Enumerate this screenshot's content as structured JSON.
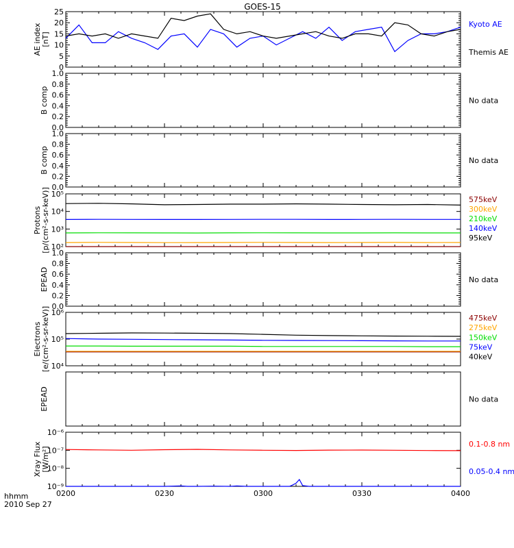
{
  "title": "GOES-15",
  "x_axis": {
    "ticks": [
      "0200",
      "0230",
      "0300",
      "0330",
      "0400"
    ],
    "range_minutes": [
      0,
      120
    ],
    "label_line1": "hhmm",
    "label_line2": "2010 Sep 27"
  },
  "chart_data": [
    {
      "type": "line",
      "panel": "ae",
      "ylabel": [
        "AE index",
        "[nT]"
      ],
      "ylim": [
        0,
        25
      ],
      "yticks": [
        "0",
        "5",
        "10",
        "15",
        "20",
        "25"
      ],
      "x": [
        0,
        4,
        8,
        12,
        16,
        20,
        24,
        28,
        32,
        36,
        40,
        44,
        48,
        52,
        56,
        60,
        64,
        68,
        72,
        76,
        80,
        84,
        88,
        92,
        96,
        100,
        104,
        108,
        112,
        116,
        120
      ],
      "series": [
        {
          "name": "Kyoto AE",
          "color": "#0000ff",
          "values": [
            13,
            19,
            11,
            11,
            16,
            13,
            11,
            8,
            14,
            15,
            9,
            17,
            15,
            9,
            13,
            14,
            10,
            13,
            16,
            13,
            18,
            12,
            16,
            17,
            18,
            7,
            12,
            15,
            15,
            16,
            18
          ]
        },
        {
          "name": "Themis AE",
          "color": "#000000",
          "values": [
            14,
            15,
            14,
            15,
            13,
            15,
            14,
            13,
            22,
            21,
            23,
            24,
            17,
            15,
            16,
            14,
            13,
            14,
            15,
            16,
            14,
            13,
            15,
            15,
            14,
            20,
            19,
            15,
            14,
            16,
            17
          ]
        }
      ],
      "legend_position": "right"
    },
    {
      "type": "line",
      "panel": "bcomp1",
      "ylabel": [
        "B comp"
      ],
      "ylim": [
        0,
        1
      ],
      "yticks": [
        "0.0",
        "0.2",
        "0.4",
        "0.6",
        "0.8",
        "1.0"
      ],
      "series": [],
      "note": "No data"
    },
    {
      "type": "line",
      "panel": "bcomp2",
      "ylabel": [
        "B comp"
      ],
      "ylim": [
        0,
        1
      ],
      "yticks": [
        "0.0",
        "0.2",
        "0.4",
        "0.6",
        "0.8",
        "1.0"
      ],
      "series": [],
      "note": "No data"
    },
    {
      "type": "line",
      "panel": "protons",
      "ylabel": [
        "Protons",
        "[p/(cm²-s-sr-keV)]"
      ],
      "yscale": "log",
      "ylim": [
        100,
        100000
      ],
      "yticks": [
        "10²",
        "10³",
        "10⁴",
        "10⁵"
      ],
      "x": [
        0,
        10,
        20,
        30,
        40,
        50,
        60,
        70,
        80,
        90,
        100,
        110,
        120
      ],
      "series": [
        {
          "name": "575keV",
          "color": "#8b0000",
          "values": [
            100,
            100,
            100,
            100,
            100,
            100,
            100,
            100,
            100,
            100,
            100,
            100,
            100
          ]
        },
        {
          "name": "300keV",
          "color": "#ffa500",
          "values": [
            170,
            175,
            172,
            168,
            170,
            172,
            175,
            172,
            170,
            171,
            173,
            170,
            172
          ]
        },
        {
          "name": "210keV",
          "color": "#00dd00",
          "values": [
            600,
            610,
            605,
            600,
            598,
            605,
            610,
            608,
            600,
            602,
            605,
            600,
            603
          ]
        },
        {
          "name": "140keV",
          "color": "#0000ff",
          "values": [
            3500,
            3550,
            3520,
            3480,
            3500,
            3530,
            3560,
            3540,
            3500,
            3520,
            3540,
            3510,
            3520
          ]
        },
        {
          "name": "95keV",
          "color": "#000000",
          "values": [
            28000,
            29000,
            27000,
            24000,
            25000,
            26000,
            26000,
            27000,
            26000,
            25000,
            24000,
            25000,
            23000
          ]
        }
      ]
    },
    {
      "type": "line",
      "panel": "epead1",
      "ylabel": [
        "EPEAD"
      ],
      "ylim": [
        0,
        1
      ],
      "yticks": [
        "0.0",
        "0.2",
        "0.4",
        "0.6",
        "0.8",
        "1.0"
      ],
      "series": [],
      "note": "No data"
    },
    {
      "type": "line",
      "panel": "electrons",
      "ylabel": [
        "Electrons",
        "[e/(cm²-s-sr-keV)]"
      ],
      "yscale": "log",
      "ylim": [
        10000,
        1000000
      ],
      "yticks": [
        "10⁴",
        "10⁵",
        "10⁶"
      ],
      "x": [
        0,
        10,
        20,
        30,
        40,
        50,
        60,
        70,
        80,
        90,
        100,
        110,
        120
      ],
      "series": [
        {
          "name": "475keV",
          "color": "#8b0000",
          "values": [
            33000,
            33000,
            33000,
            33000,
            33000,
            33000,
            33000,
            33000,
            33000,
            33000,
            33000,
            33000,
            33000
          ]
        },
        {
          "name": "275keV",
          "color": "#ffa500",
          "values": [
            35000,
            35000,
            35000,
            35000,
            35000,
            35000,
            35000,
            35000,
            35000,
            35000,
            35000,
            35000,
            35000
          ]
        },
        {
          "name": "150keV",
          "color": "#00dd00",
          "values": [
            55000,
            55000,
            54000,
            54000,
            54000,
            54000,
            53000,
            53000,
            53000,
            53000,
            53000,
            52000,
            52000
          ]
        },
        {
          "name": "75keV",
          "color": "#0000ff",
          "values": [
            105000,
            100000,
            98000,
            96000,
            94000,
            92000,
            90000,
            89000,
            88000,
            87000,
            86000,
            85000,
            85000
          ]
        },
        {
          "name": "40keV",
          "color": "#000000",
          "values": [
            160000,
            165000,
            170000,
            168000,
            165000,
            160000,
            150000,
            140000,
            135000,
            132000,
            130000,
            128000,
            127000
          ]
        }
      ]
    },
    {
      "type": "line",
      "panel": "epead2",
      "ylabel": [
        "EPEAD"
      ],
      "ylim": [
        0,
        1
      ],
      "yticks": [],
      "series": [],
      "note": "No data"
    },
    {
      "type": "line",
      "panel": "xray",
      "ylabel": [
        "Xray Flux",
        "[W/m²]"
      ],
      "yscale": "log",
      "ylim": [
        1e-09,
        1e-06
      ],
      "yticks": [
        "10⁻⁹",
        "10⁻⁸",
        "10⁻⁷",
        "10⁻⁶"
      ],
      "x": [
        0,
        10,
        20,
        30,
        40,
        50,
        60,
        70,
        80,
        90,
        100,
        110,
        120
      ],
      "series": [
        {
          "name": "0.1-0.8 nm",
          "color": "#ff0000",
          "values": [
            1.1e-07,
            1.05e-07,
            1e-07,
            1.08e-07,
            1.12e-07,
            1.05e-07,
            1e-07,
            9.8e-08,
            1.02e-07,
            1.03e-07,
            1e-07,
            9.7e-08,
            9.5e-08
          ]
        },
        {
          "name": "0.05-0.4 nm",
          "color": "#0000ff",
          "x": [
            0,
            30,
            35,
            37,
            40,
            45,
            50,
            52,
            55,
            60,
            65,
            68,
            69,
            70,
            71,
            72,
            74,
            80,
            90,
            100,
            110,
            120
          ],
          "values": [
            1e-09,
            1e-09,
            1.05e-09,
            1e-09,
            1e-09,
            1.03e-09,
            1e-09,
            1.05e-09,
            1e-09,
            1e-09,
            1e-09,
            1e-09,
            1.2e-09,
            1.5e-09,
            2.4e-09,
            1.1e-09,
            1e-09,
            1e-09,
            1e-09,
            1e-09,
            1e-09,
            1e-09
          ]
        }
      ]
    }
  ]
}
